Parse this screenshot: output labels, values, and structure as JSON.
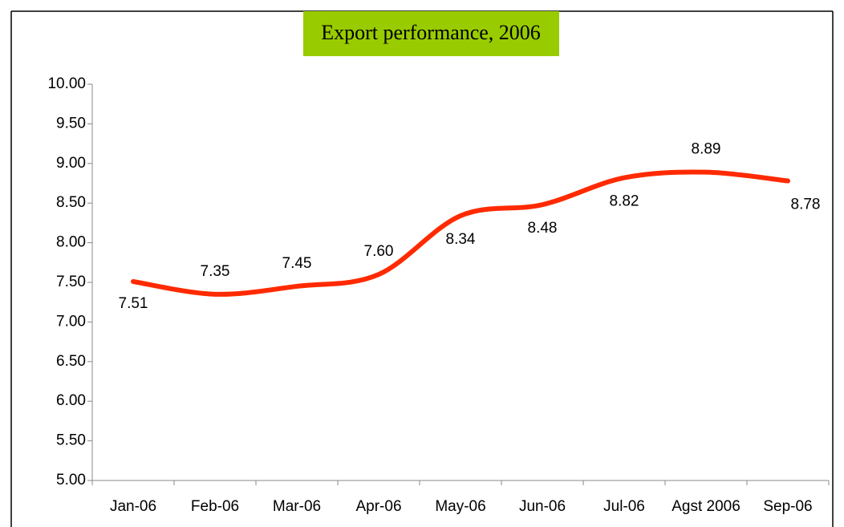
{
  "chart_data": {
    "type": "line",
    "title": "Export performance, 2006",
    "categories": [
      "Jan-06",
      "Feb-06",
      "Mar-06",
      "Apr-06",
      "May-06",
      "Jun-06",
      "Jul-06",
      "Agst 2006",
      "Sep-06"
    ],
    "values": [
      7.51,
      7.35,
      7.45,
      7.6,
      8.34,
      8.48,
      8.82,
      8.89,
      8.78
    ],
    "value_labels": [
      "7.51",
      "7.35",
      "7.45",
      "7.60",
      "8.34",
      "8.48",
      "8.82",
      "8.89",
      "8.78"
    ],
    "color": "#ff2a00",
    "title_background": "#99cc00",
    "ylim": [
      5,
      10
    ],
    "yticks": [
      {
        "value": 5,
        "label": "5.00"
      },
      {
        "value": 5.5,
        "label": "5.50"
      },
      {
        "value": 6,
        "label": "6.00"
      },
      {
        "value": 6.5,
        "label": "6.50"
      },
      {
        "value": 7,
        "label": "7.00"
      },
      {
        "value": 7.5,
        "label": "7.50"
      },
      {
        "value": 8,
        "label": "8.00"
      },
      {
        "value": 8.5,
        "label": "8.50"
      },
      {
        "value": 9,
        "label": "9.00"
      },
      {
        "value": 9.5,
        "label": "9.50"
      },
      {
        "value": 10,
        "label": "10.00"
      }
    ],
    "grid": false
  }
}
